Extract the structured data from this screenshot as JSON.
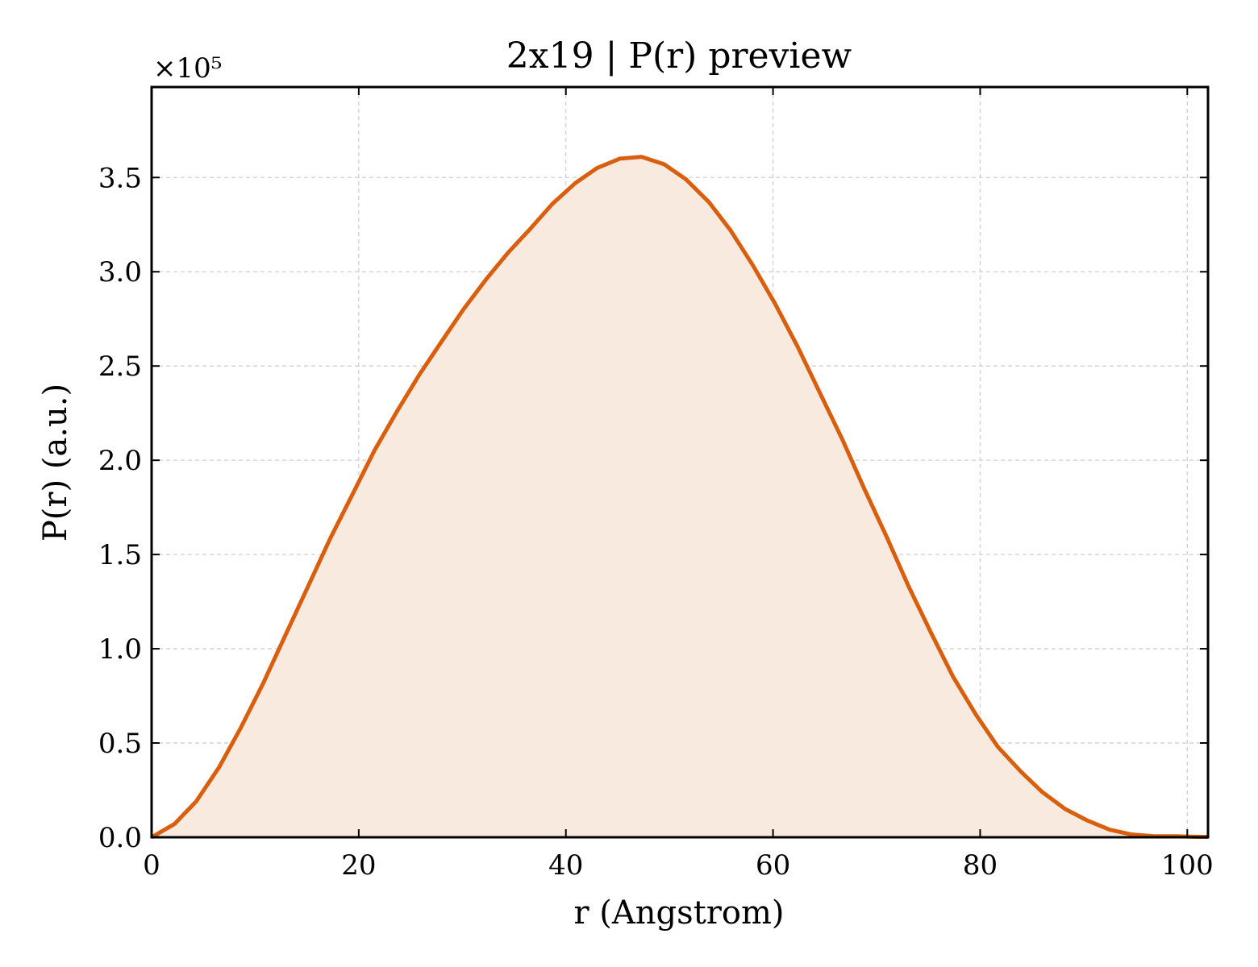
{
  "chart_data": {
    "type": "area",
    "title": "2x19 | P(r) preview",
    "xlabel": "r (Angstrom)",
    "ylabel": "P(r) (a.u.)",
    "y_multiplier_label": "×10⁵",
    "xlim": [
      0,
      102
    ],
    "ylim": [
      0,
      3.98
    ],
    "x_ticks": [
      0,
      20,
      40,
      60,
      80,
      100
    ],
    "x_tick_labels": [
      "0",
      "20",
      "40",
      "60",
      "80",
      "100"
    ],
    "y_ticks": [
      0,
      0.5,
      1.0,
      1.5,
      2.0,
      2.5,
      3.0,
      3.5
    ],
    "y_tick_labels": [
      "0.0",
      "0.5",
      "1.0",
      "1.5",
      "2.0",
      "2.5",
      "3.0",
      "3.5"
    ],
    "grid": true,
    "line_color": "#d95f0e",
    "fill_color": "#f8eadf",
    "series": [
      {
        "x": [
          0,
          2.2,
          4.3,
          6.5,
          8.6,
          10.8,
          12.9,
          15.1,
          17.2,
          19.4,
          21.5,
          23.7,
          25.8,
          28.0,
          30.1,
          32.3,
          34.4,
          36.6,
          38.7,
          40.9,
          43.0,
          45.2,
          47.3,
          49.5,
          51.6,
          53.8,
          55.9,
          58.1,
          60.2,
          62.4,
          64.5,
          66.7,
          68.8,
          71.0,
          73.1,
          75.3,
          77.4,
          79.6,
          81.7,
          83.9,
          86.0,
          88.2,
          90.3,
          92.5,
          94.6,
          96.8,
          98.9,
          101.1,
          102
        ],
        "values": [
          0,
          0.07,
          0.19,
          0.37,
          0.58,
          0.82,
          1.07,
          1.33,
          1.58,
          1.82,
          2.05,
          2.26,
          2.45,
          2.63,
          2.8,
          2.96,
          3.1,
          3.23,
          3.36,
          3.47,
          3.55,
          3.6,
          3.61,
          3.57,
          3.49,
          3.37,
          3.22,
          3.03,
          2.83,
          2.6,
          2.36,
          2.11,
          1.85,
          1.59,
          1.33,
          1.08,
          0.85,
          0.65,
          0.48,
          0.35,
          0.24,
          0.15,
          0.09,
          0.04,
          0.015,
          0.005,
          0.005,
          0.002,
          0.002
        ]
      }
    ]
  }
}
